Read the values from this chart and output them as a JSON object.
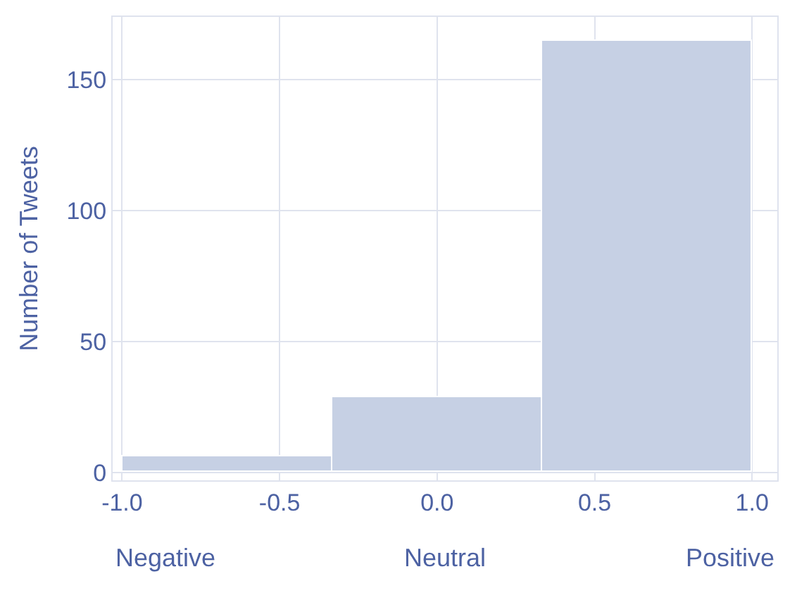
{
  "chart_data": {
    "type": "histogram",
    "ylabel": "Number of Tweets",
    "bins": [
      -1.0,
      -0.333,
      0.333,
      1.0
    ],
    "values": [
      6,
      29,
      165
    ],
    "color": "#c6d0e4",
    "xlim": [
      -1.03,
      1.08
    ],
    "ylim": [
      -3,
      174
    ],
    "xticks": [
      {
        "value": -1.0,
        "label": "-1.0"
      },
      {
        "value": -0.5,
        "label": "-0.5"
      },
      {
        "value": 0.0,
        "label": "0.0"
      },
      {
        "value": 0.5,
        "label": "0.5"
      },
      {
        "value": 1.0,
        "label": "1.0"
      }
    ],
    "yticks": [
      0,
      50,
      100,
      150
    ],
    "grid": true,
    "annotations": [
      "Negative",
      "Neutral",
      "Positive"
    ]
  }
}
